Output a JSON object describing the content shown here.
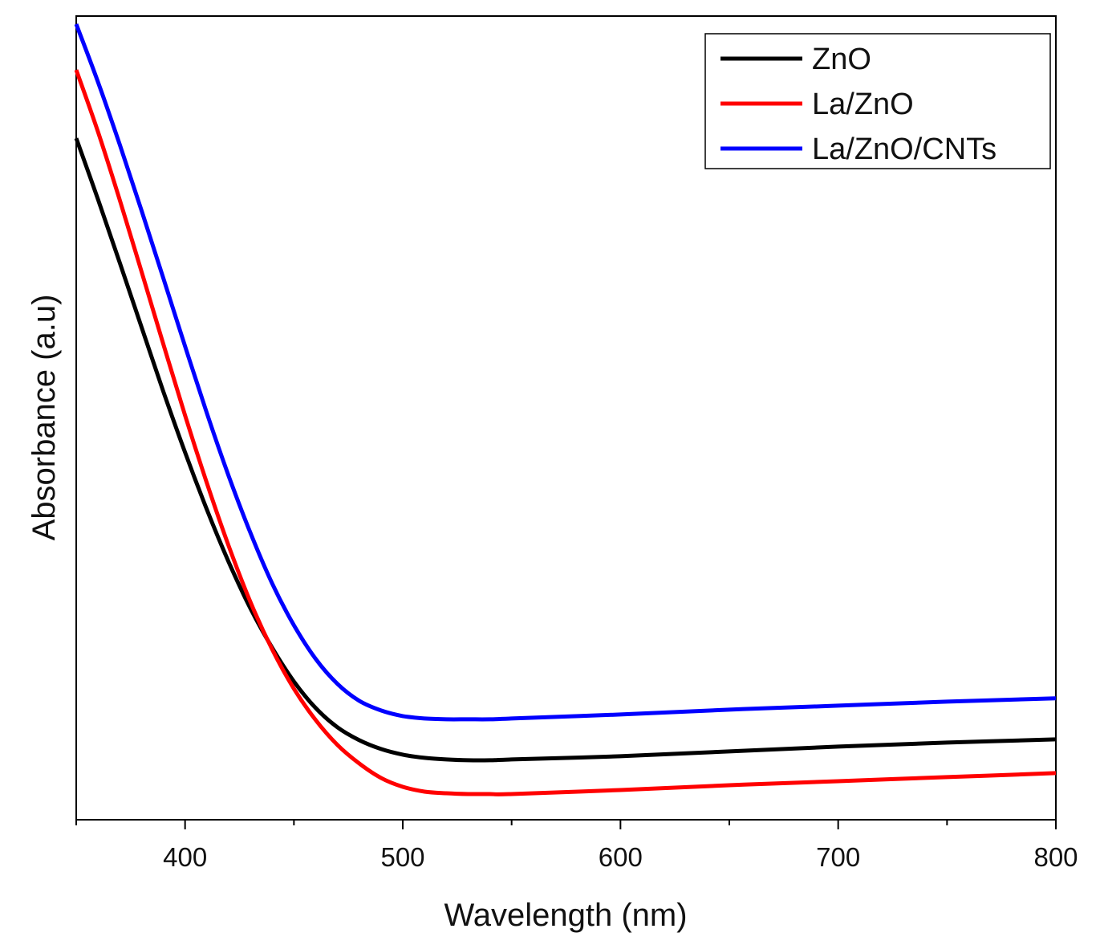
{
  "chart_data": {
    "type": "line",
    "title": "",
    "xlabel": "Wavelength (nm)",
    "ylabel": "Absorbance (a.u)",
    "xlim": [
      350,
      800
    ],
    "ylim": [
      0,
      1
    ],
    "x_ticks": [
      400,
      500,
      600,
      700,
      800
    ],
    "x_tick_labels": [
      "400",
      "500",
      "600",
      "700",
      "800"
    ],
    "y_ticks_shown": false,
    "grid": false,
    "legend_position": "top-right",
    "series": [
      {
        "name": "ZnO",
        "color": "#000000",
        "x": [
          350,
          360,
          370,
          380,
          390,
          400,
          410,
          420,
          430,
          440,
          450,
          460,
          470,
          480,
          490,
          500,
          510,
          520,
          530,
          540,
          550,
          600,
          650,
          700,
          750,
          800
        ],
        "y": [
          0.848,
          0.772,
          0.693,
          0.613,
          0.533,
          0.457,
          0.386,
          0.321,
          0.263,
          0.214,
          0.172,
          0.139,
          0.115,
          0.099,
          0.088,
          0.081,
          0.077,
          0.075,
          0.074,
          0.074,
          0.075,
          0.079,
          0.085,
          0.091,
          0.096,
          0.1
        ]
      },
      {
        "name": "La/ZnO",
        "color": "#ff0000",
        "x": [
          350,
          360,
          370,
          380,
          390,
          400,
          410,
          420,
          430,
          440,
          450,
          460,
          470,
          480,
          490,
          500,
          510,
          520,
          530,
          540,
          550,
          600,
          650,
          700,
          750,
          800
        ],
        "y": [
          0.933,
          0.856,
          0.771,
          0.682,
          0.592,
          0.503,
          0.419,
          0.341,
          0.271,
          0.212,
          0.163,
          0.124,
          0.093,
          0.07,
          0.052,
          0.041,
          0.035,
          0.033,
          0.032,
          0.032,
          0.032,
          0.037,
          0.043,
          0.048,
          0.053,
          0.058
        ]
      },
      {
        "name": "La/ZnO/CNTs",
        "color": "#0000ff",
        "x": [
          350,
          360,
          370,
          380,
          390,
          400,
          410,
          420,
          430,
          440,
          450,
          460,
          470,
          480,
          490,
          500,
          510,
          520,
          530,
          540,
          550,
          600,
          650,
          700,
          750,
          800
        ],
        "y": [
          0.99,
          0.918,
          0.84,
          0.758,
          0.674,
          0.589,
          0.506,
          0.428,
          0.357,
          0.294,
          0.242,
          0.2,
          0.169,
          0.148,
          0.136,
          0.129,
          0.126,
          0.125,
          0.125,
          0.125,
          0.126,
          0.131,
          0.137,
          0.142,
          0.147,
          0.151
        ]
      }
    ]
  }
}
